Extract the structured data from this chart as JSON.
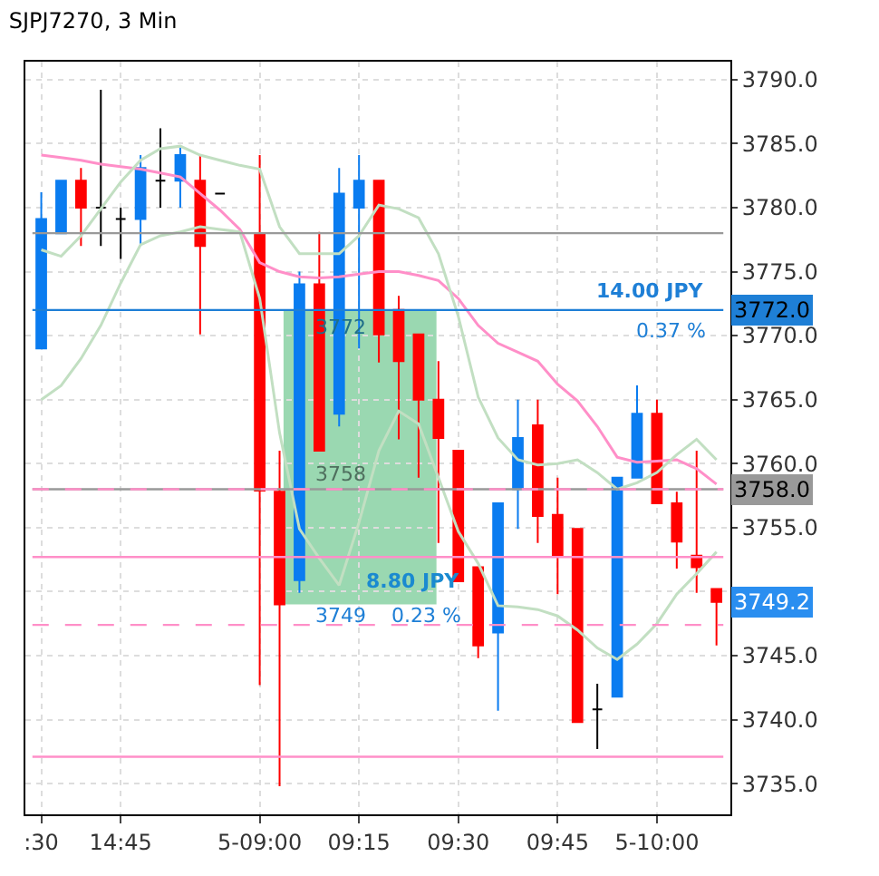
{
  "chart_data": {
    "type": "candlestick",
    "title": "SJPJ7270, 3 Min",
    "categories": [
      ":30",
      null,
      null,
      null,
      "14:45",
      null,
      null,
      null,
      null,
      null,
      null,
      "5-09:00",
      null,
      null,
      null,
      null,
      "09:15",
      null,
      null,
      null,
      null,
      "09:30",
      null,
      null,
      null,
      null,
      "09:45",
      null,
      null,
      null,
      null,
      "5-10:00",
      null,
      null,
      null
    ],
    "ohlc": [
      [
        3769.0,
        3781.2,
        3769.0,
        3779.1
      ],
      [
        3778.0,
        3782.1,
        3778.0,
        3782.1
      ],
      [
        3782.1,
        3783.1,
        3777.0,
        3780.0
      ],
      [
        3780.0,
        3789.2,
        3777.0,
        3780.0
      ],
      [
        3779.1,
        3780.0,
        3776.0,
        3779.1
      ],
      [
        3779.1,
        3784.1,
        3777.0,
        3783.1
      ],
      [
        3782.1,
        3786.2,
        3780.0,
        3782.1
      ],
      [
        3782.1,
        3784.8,
        3780.0,
        3784.1
      ],
      [
        3782.1,
        3784.1,
        3770.1,
        3777.0
      ],
      [
        3781.1,
        3781.1,
        3781.1,
        3781.1
      ],
      null,
      [
        3778.0,
        3784.1,
        3742.7,
        3757.9
      ],
      [
        3757.8,
        3761.0,
        3734.8,
        3749.0
      ],
      [
        3750.9,
        3775.0,
        3749.9,
        3774.0
      ],
      [
        3774.0,
        3778.1,
        3761.0,
        3761.0
      ],
      [
        3763.9,
        3783.1,
        3762.9,
        3781.1
      ],
      [
        3780.0,
        3784.1,
        3769.0,
        3782.1
      ],
      [
        3782.1,
        3782.1,
        3767.9,
        3770.1
      ],
      [
        3772.0,
        3773.1,
        3761.9,
        3768.0
      ],
      [
        3770.1,
        3770.1,
        3758.9,
        3765.0
      ],
      [
        3765.0,
        3768.0,
        3753.8,
        3762.0
      ],
      [
        3761.0,
        3761.0,
        3750.8,
        3750.8
      ],
      [
        3751.9,
        3751.9,
        3744.8,
        3745.8
      ],
      [
        3746.8,
        3756.9,
        3740.7,
        3756.9
      ],
      [
        3758.0,
        3765.0,
        3754.9,
        3762.0
      ],
      [
        3763.0,
        3765.0,
        3753.8,
        3755.9
      ],
      [
        3756.0,
        3758.9,
        3749.8,
        3752.8
      ],
      [
        3754.9,
        3754.9,
        3739.8,
        3739.8
      ],
      [
        3740.8,
        3742.8,
        3737.7,
        3740.8
      ],
      [
        3741.8,
        3758.9,
        3741.8,
        3758.9
      ],
      [
        3758.9,
        3766.1,
        3758.9,
        3763.9
      ],
      [
        3763.9,
        3765.0,
        3756.9,
        3756.9
      ],
      [
        3756.9,
        3757.8,
        3751.8,
        3753.9
      ],
      [
        3752.8,
        3761.0,
        3749.9,
        3751.9
      ],
      [
        3750.2,
        3750.2,
        3745.8,
        3749.2
      ]
    ],
    "colors": [
      "#0a7cf0",
      "#0a7cf0",
      "#ff0000",
      "#000000",
      "#000000",
      "#0a7cf0",
      "#000000",
      "#0a7cf0",
      "#ff0000",
      "#000000",
      null,
      "#ff0000",
      "#ff0000",
      "#0a7cf0",
      "#ff0000",
      "#0a7cf0",
      "#0a7cf0",
      "#ff0000",
      "#ff0000",
      "#ff0000",
      "#ff0000",
      "#ff0000",
      "#ff0000",
      "#0a7cf0",
      "#0a7cf0",
      "#ff0000",
      "#ff0000",
      "#ff0000",
      "#000000",
      "#0a7cf0",
      "#0a7cf0",
      "#ff0000",
      "#ff0000",
      "#ff0000",
      "#ff0000"
    ],
    "series": [
      {
        "type": "line",
        "color": "#ff8fc8",
        "values": [
          3784.1,
          3783.9,
          3783.7,
          3783.4,
          3783.2,
          3783.0,
          3782.7,
          3782.4,
          3781.1,
          3779.8,
          3778.3,
          3775.7,
          3775.0,
          3774.6,
          3774.5,
          3774.6,
          3774.8,
          3775.0,
          3775.0,
          3774.7,
          3774.3,
          3772.9,
          3770.8,
          3769.4,
          3768.7,
          3768.0,
          3766.2,
          3764.9,
          3762.9,
          3760.5,
          3760.1,
          3760.2,
          3760.3,
          3759.6,
          3758.4
        ]
      },
      {
        "type": "line",
        "color": "#c2dfc2",
        "values": [
          3776.7,
          3776.2,
          3777.8,
          3779.9,
          3782.0,
          3783.7,
          3784.6,
          3784.8,
          3784.1,
          3783.7,
          3783.3,
          3783.0,
          3778.5,
          3776.4,
          3776.4,
          3776.4,
          3777.8,
          3780.2,
          3779.9,
          3779.2,
          3776.4,
          3771.5,
          3765.2,
          3762.0,
          3760.3,
          3759.9,
          3760.0,
          3760.3,
          3759.3,
          3758.0,
          3758.5,
          3759.3,
          3760.7,
          3761.9,
          3760.3
        ]
      },
      {
        "type": "line",
        "color": "#c2dfc2",
        "values": [
          3765.0,
          3766.1,
          3768.2,
          3770.8,
          3774.1,
          3777.1,
          3777.8,
          3778.1,
          3778.5,
          3778.3,
          3778.1,
          3772.9,
          3762.4,
          3754.9,
          3752.6,
          3750.5,
          3755.4,
          3761.0,
          3764.1,
          3763.1,
          3758.9,
          3754.7,
          3752.2,
          3748.9,
          3748.8,
          3748.6,
          3748.1,
          3747.0,
          3745.6,
          3744.7,
          3745.9,
          3747.5,
          3749.8,
          3751.4,
          3753.1
        ]
      }
    ],
    "ylim": [
      3732.6,
      3791.4
    ],
    "yticks": [
      {
        "value": 3735,
        "label": "3735.0"
      },
      {
        "value": 3740,
        "label": "3740.0"
      },
      {
        "value": 3745,
        "label": "3745.0"
      },
      {
        "value": 3750,
        "label": null
      },
      {
        "value": 3755,
        "label": "3755.0"
      },
      {
        "value": 3760,
        "label": "3760.0"
      },
      {
        "value": 3765,
        "label": "3765.0"
      },
      {
        "value": 3770,
        "label": "3770.0"
      },
      {
        "value": 3775,
        "label": "3775.0"
      },
      {
        "value": 3780,
        "label": "3780.0"
      },
      {
        "value": 3785,
        "label": "3785.0"
      },
      {
        "value": 3790,
        "label": "3790.0"
      }
    ],
    "grid": true,
    "bands": [
      {
        "axis": "y",
        "from": 3749,
        "to": 3772,
        "color": "#8fd4a8"
      }
    ],
    "ref_lines": [
      {
        "axis": "y",
        "value": 3778.0,
        "color": "#999999",
        "line_style": "solid"
      },
      {
        "axis": "y",
        "value": 3772.0,
        "color": "#1e7fd6",
        "line_style": "solid",
        "label": "3772.0"
      },
      {
        "axis": "y",
        "value": 3758.0,
        "color": "#999999",
        "line_style": "solid",
        "label": "3758.0"
      },
      {
        "axis": "y",
        "value": 3758.0,
        "color": "#ff8fc8",
        "line_style": "dashed"
      },
      {
        "axis": "y",
        "value": 3752.7,
        "color": "#ff8fc8",
        "line_style": "solid"
      },
      {
        "axis": "y",
        "value": 3747.4,
        "color": "#ff8fc8",
        "line_style": "dashed"
      },
      {
        "axis": "y",
        "value": 3737.1,
        "color": "#ff8fc8",
        "line_style": "solid"
      }
    ],
    "annotations": [
      "14.00 JPY",
      "0.37 %",
      "3772",
      "3758",
      "8.80 JPY",
      "3749",
      "0.23 %",
      "3749.2"
    ]
  }
}
